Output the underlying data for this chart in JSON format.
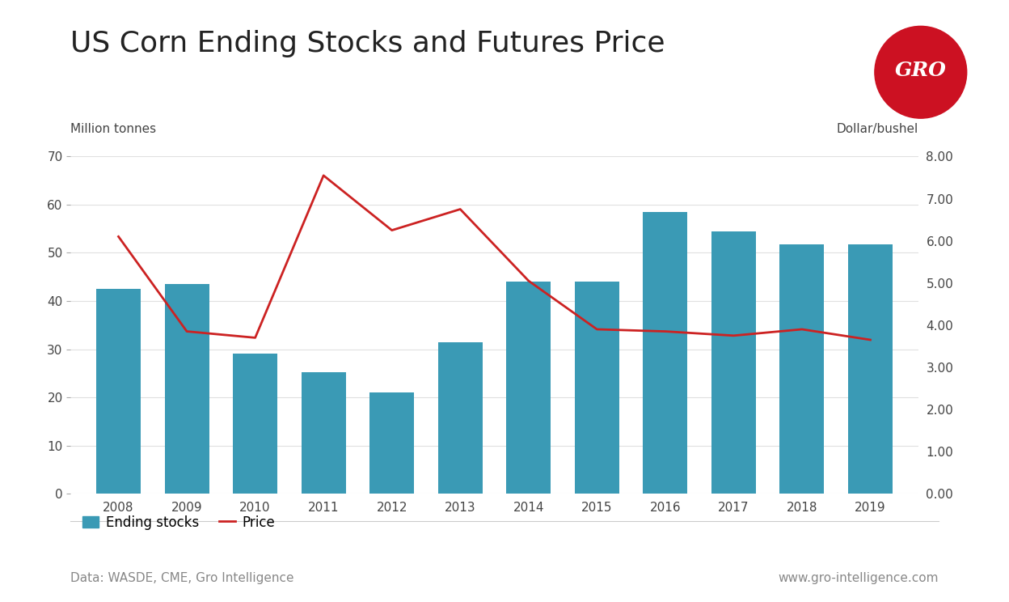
{
  "title": "US Corn Ending Stocks and Futures Price",
  "years": [
    2008,
    2009,
    2010,
    2011,
    2012,
    2013,
    2014,
    2015,
    2016,
    2017,
    2018,
    2019
  ],
  "ending_stocks": [
    42.5,
    43.5,
    29.0,
    25.2,
    21.0,
    31.5,
    44.0,
    44.0,
    58.5,
    54.5,
    51.7,
    51.7
  ],
  "price": [
    6.1,
    3.85,
    3.7,
    7.55,
    6.25,
    6.75,
    5.05,
    3.9,
    3.85,
    3.75,
    3.9,
    3.65
  ],
  "bar_color": "#3A9AB5",
  "line_color": "#CC2222",
  "label_left": "Million tonnes",
  "label_right": "Dollar/bushel",
  "ylim_left": [
    0,
    70
  ],
  "ylim_right": [
    0.0,
    8.0
  ],
  "yticks_left": [
    0,
    10,
    20,
    30,
    40,
    50,
    60,
    70
  ],
  "yticks_right": [
    0.0,
    1.0,
    2.0,
    3.0,
    4.0,
    5.0,
    6.0,
    7.0,
    8.0
  ],
  "legend_label_bar": "Ending stocks",
  "legend_label_line": "Price",
  "data_source": "Data: WASDE, CME, Gro Intelligence",
  "website": "www.gro-intelligence.com",
  "background_color": "#ffffff",
  "grid_color": "#e0e0e0",
  "title_fontsize": 26,
  "axis_label_fontsize": 11,
  "tick_fontsize": 11,
  "legend_fontsize": 12,
  "footer_fontsize": 11
}
